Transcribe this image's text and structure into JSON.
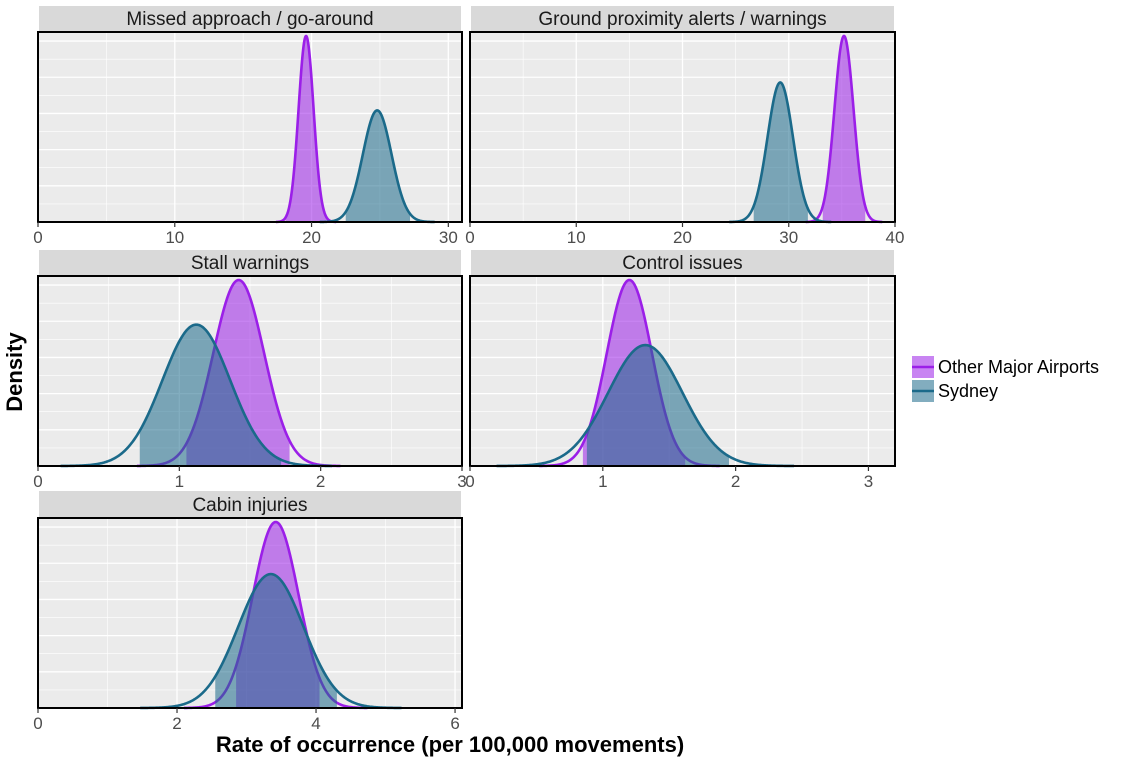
{
  "colors": {
    "other_major_airports": "#9b1fe8",
    "sydney": "#1b6a8a",
    "panel_background": "#ebebeb",
    "strip_background": "#d9d9d9"
  },
  "legend": {
    "position": "right",
    "items": [
      {
        "label": "Other Major Airports",
        "color_key": "other_major_airports"
      },
      {
        "label": "Sydney",
        "color_key": "sydney"
      }
    ]
  },
  "chart_data": {
    "type": "area",
    "grid": true,
    "xlabel": "Rate of occurrence (per 100,000 movements)",
    "ylabel": "Density",
    "panels": [
      {
        "title": "Missed approach / go-around",
        "xlim": [
          0,
          31
        ],
        "ticks": [
          "0",
          "10",
          "20",
          "30"
        ],
        "tick_values": [
          0,
          10,
          20,
          30
        ],
        "series": [
          {
            "name": "Other Major Airports",
            "mean": 19.6,
            "sd": 0.55,
            "shade": [
              18.1,
              21.1
            ],
            "peak": 1.0
          },
          {
            "name": "Sydney",
            "mean": 24.8,
            "sd": 1.05,
            "shade": [
              22.5,
              27.2
            ],
            "peak": 0.6
          }
        ]
      },
      {
        "title": "Ground proximity alerts / warnings",
        "xlim": [
          0,
          40
        ],
        "ticks": [
          "0",
          "10",
          "20",
          "30",
          "40"
        ],
        "tick_values": [
          0,
          10,
          20,
          30,
          40
        ],
        "series": [
          {
            "name": "Other Major Airports",
            "mean": 35.2,
            "sd": 0.9,
            "shade": [
              33.2,
              37.2
            ],
            "peak": 1.0
          },
          {
            "name": "Sydney",
            "mean": 29.2,
            "sd": 1.2,
            "shade": [
              26.7,
              31.8
            ],
            "peak": 0.75
          }
        ]
      },
      {
        "title": "Stall warnings",
        "xlim": [
          0,
          3
        ],
        "ticks": [
          "0",
          "1",
          "2",
          "3"
        ],
        "tick_values": [
          0,
          1,
          2,
          3
        ],
        "series": [
          {
            "name": "Other Major Airports",
            "mean": 1.42,
            "sd": 0.18,
            "shade": [
              1.05,
              1.78
            ],
            "peak": 1.0
          },
          {
            "name": "Sydney",
            "mean": 1.12,
            "sd": 0.24,
            "shade": [
              0.72,
              1.72
            ],
            "peak": 0.76
          }
        ]
      },
      {
        "title": "Control issues",
        "xlim": [
          0,
          3.2
        ],
        "ticks": [
          "0",
          "1",
          "2",
          "3"
        ],
        "tick_values": [
          0,
          1,
          2,
          3
        ],
        "series": [
          {
            "name": "Other Major Airports",
            "mean": 1.2,
            "sd": 0.17,
            "shade": [
              0.85,
              1.62
            ],
            "peak": 1.0
          },
          {
            "name": "Sydney",
            "mean": 1.32,
            "sd": 0.28,
            "shade": [
              0.88,
              1.95
            ],
            "peak": 0.65
          }
        ]
      },
      {
        "title": "Cabin injuries",
        "xlim": [
          0,
          6.1
        ],
        "ticks": [
          "0",
          "2",
          "4",
          "6"
        ],
        "tick_values": [
          0,
          2,
          4,
          6
        ],
        "series": [
          {
            "name": "Other Major Airports",
            "mean": 3.42,
            "sd": 0.33,
            "shade": [
              2.85,
              4.05
            ],
            "peak": 1.0
          },
          {
            "name": "Sydney",
            "mean": 3.35,
            "sd": 0.47,
            "shade": [
              2.55,
              4.3
            ],
            "peak": 0.72
          }
        ]
      }
    ]
  }
}
